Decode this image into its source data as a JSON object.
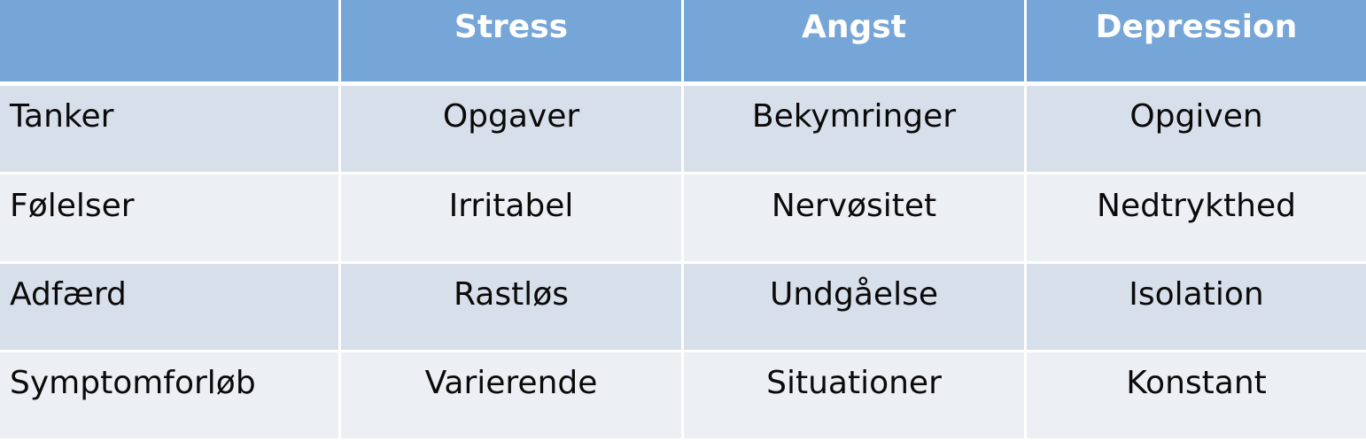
{
  "table": {
    "columns": [
      "",
      "Stress",
      "Angst",
      "Depression"
    ],
    "rows": [
      {
        "label": "Tanker",
        "cells": [
          "Opgaver",
          "Bekymringer",
          "Opgiven"
        ]
      },
      {
        "label": "Følelser",
        "cells": [
          "Irritabel",
          "Nervøsitet",
          "Nedtrykthed"
        ]
      },
      {
        "label": "Adfærd",
        "cells": [
          "Rastløs",
          "Undgåelse",
          "Isolation"
        ]
      },
      {
        "label": "Symptomforløb",
        "cells": [
          "Varierende",
          "Situationer",
          "Konstant"
        ]
      }
    ]
  },
  "colors": {
    "header": "#76a5d8",
    "row_odd": "#d7dfea",
    "row_even": "#eceff4"
  }
}
